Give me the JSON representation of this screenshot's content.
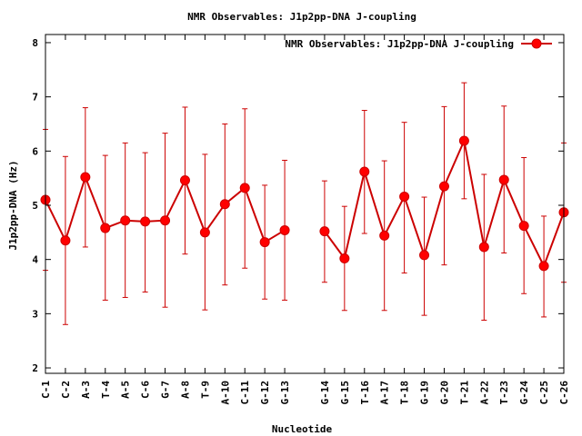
{
  "chart_data": {
    "type": "line",
    "title": "NMR Observables: J1p2pp-DNA J-coupling",
    "xlabel": "Nucleotide",
    "ylabel": "J1p2pp-DNA (Hz)",
    "ylim": [
      1.9,
      8.15
    ],
    "y_ticks": [
      2,
      3,
      4,
      5,
      6,
      7,
      8
    ],
    "grid": false,
    "legend_position": "top-right",
    "series_color": "#ff0000",
    "line_color": "#cc0000",
    "categories": [
      "C-1",
      "C-2",
      "A-3",
      "T-4",
      "A-5",
      "C-6",
      "G-7",
      "A-8",
      "T-9",
      "A-10",
      "C-11",
      "G-12",
      "G-13",
      "",
      "G-14",
      "G-15",
      "T-16",
      "A-17",
      "T-18",
      "G-19",
      "G-20",
      "T-21",
      "A-22",
      "T-23",
      "G-24",
      "C-25",
      "C-26"
    ],
    "series": [
      {
        "name": "NMR Observables: J1p2pp-DNA J-coupling",
        "values": [
          5.1,
          4.35,
          5.52,
          4.58,
          4.72,
          4.7,
          4.72,
          5.46,
          4.5,
          5.02,
          5.32,
          4.32,
          4.54,
          null,
          4.52,
          4.02,
          5.62,
          4.44,
          5.16,
          4.08,
          5.35,
          6.19,
          4.23,
          5.47,
          4.62,
          3.88,
          4.87
        ],
        "err_low": [
          3.8,
          2.8,
          4.23,
          3.25,
          3.3,
          3.4,
          3.12,
          4.1,
          3.07,
          3.53,
          3.84,
          3.27,
          3.25,
          null,
          3.58,
          3.06,
          4.48,
          3.06,
          3.75,
          2.97,
          3.9,
          5.12,
          2.88,
          4.12,
          3.37,
          2.94,
          3.58
        ],
        "err_high": [
          6.4,
          5.9,
          6.8,
          5.92,
          6.15,
          5.97,
          6.33,
          6.81,
          5.94,
          6.5,
          6.78,
          5.37,
          5.83,
          null,
          5.45,
          4.98,
          6.75,
          5.82,
          6.53,
          5.15,
          6.82,
          7.26,
          5.57,
          6.83,
          5.88,
          4.8,
          6.15
        ]
      }
    ]
  }
}
